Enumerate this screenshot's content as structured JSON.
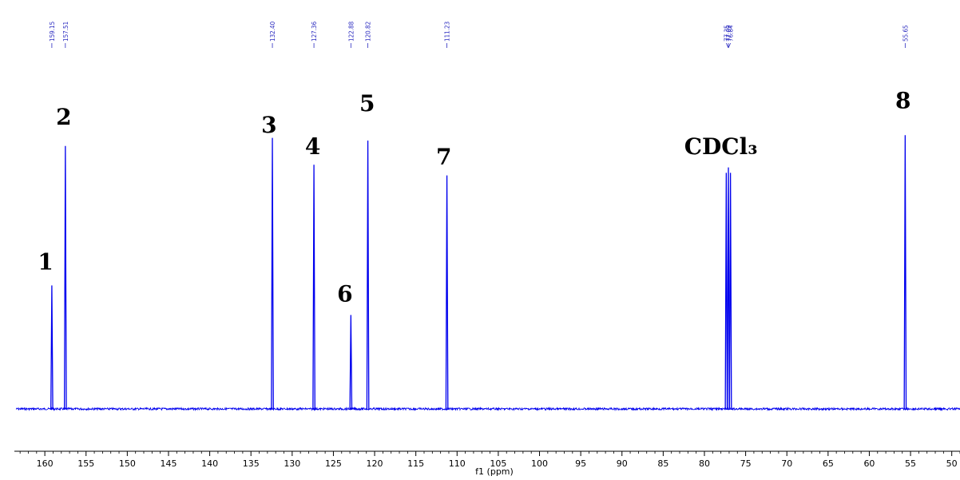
{
  "chart_data": {
    "type": "line",
    "xlabel": "f1 (ppm)",
    "xlim": [
      163.5,
      49.0
    ],
    "x_ticks": [
      160,
      155,
      150,
      145,
      140,
      135,
      130,
      125,
      120,
      115,
      110,
      105,
      100,
      95,
      90,
      85,
      80,
      75,
      70,
      65,
      60,
      55,
      50
    ],
    "x_tick_labels": [
      "160",
      "155",
      "150",
      "145",
      "140",
      "135",
      "130",
      "125",
      "120",
      "115",
      "110",
      "105",
      "100",
      "95",
      "90",
      "85",
      "80",
      "75",
      "70",
      "65",
      "60",
      "55",
      "50"
    ],
    "ylim": [
      0,
      1
    ],
    "grid": false,
    "series": [
      {
        "color": "#0000ee",
        "peaks": [
          {
            "ppm": 159.15,
            "height": 0.46
          },
          {
            "ppm": 157.51,
            "height": 0.98
          },
          {
            "ppm": 132.4,
            "height": 1.01
          },
          {
            "ppm": 127.36,
            "height": 0.91
          },
          {
            "ppm": 122.88,
            "height": 0.35
          },
          {
            "ppm": 120.82,
            "height": 1.0
          },
          {
            "ppm": 111.23,
            "height": 0.87
          },
          {
            "ppm": 77.35,
            "height": 0.88
          },
          {
            "ppm": 77.09,
            "height": 0.9
          },
          {
            "ppm": 76.84,
            "height": 0.88
          },
          {
            "ppm": 55.65,
            "height": 1.02
          }
        ]
      }
    ],
    "shift_labels": [
      "159.15",
      "157.51",
      "132.40",
      "127.36",
      "122.88",
      "120.82",
      "111.23",
      "77.35",
      "77.09",
      "76.84",
      "55.65"
    ],
    "peak_annotations": [
      {
        "text": "1",
        "ppm": 159.9,
        "height": 0.52
      },
      {
        "text": "2",
        "ppm": 157.7,
        "height": 1.06
      },
      {
        "text": "3",
        "ppm": 132.8,
        "height": 1.03
      },
      {
        "text": "4",
        "ppm": 127.5,
        "height": 0.95
      },
      {
        "text": "5",
        "ppm": 120.9,
        "height": 1.11
      },
      {
        "text": "6",
        "ppm": 123.6,
        "height": 0.4
      },
      {
        "text": "7",
        "ppm": 111.6,
        "height": 0.91
      },
      {
        "text": "CDCl₃",
        "ppm": 78.0,
        "height": 0.95
      },
      {
        "text": "8",
        "ppm": 55.9,
        "height": 1.12
      }
    ]
  }
}
